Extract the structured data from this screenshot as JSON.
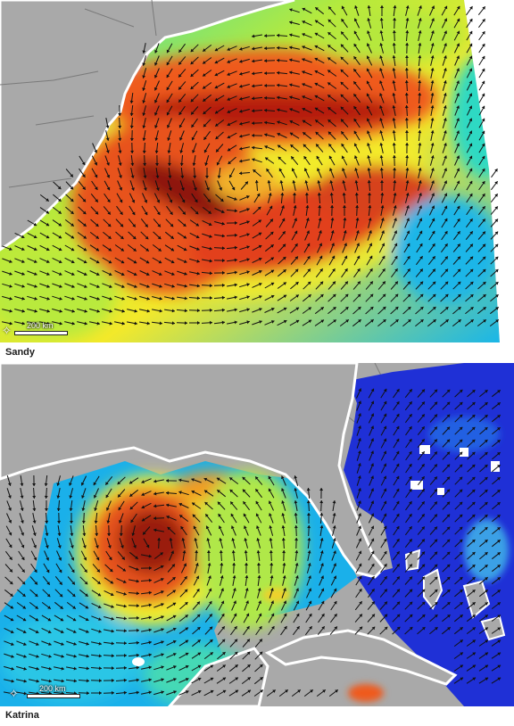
{
  "panels": [
    {
      "id": "sandy",
      "caption": "Sandy",
      "scale_label": "200 km",
      "north_symbol": "✧",
      "colors": {
        "land": "#a9a9a9",
        "coast": "#ffffff",
        "border": "#7a7a7a",
        "arrow": "#111111"
      }
    },
    {
      "id": "katrina",
      "caption": "Katrina",
      "scale_label": "200 km",
      "north_symbol": "✧",
      "colors": {
        "land": "#a9a9a9",
        "coast": "#ffffff",
        "border": "#7a7a7a",
        "arrow": "#111111"
      }
    }
  ],
  "color_scale": [
    "#1f2ed8",
    "#1aa3f0",
    "#22d6c7",
    "#9be64a",
    "#f5f02a",
    "#f59a1c",
    "#e5381a",
    "#8e0f0a"
  ]
}
